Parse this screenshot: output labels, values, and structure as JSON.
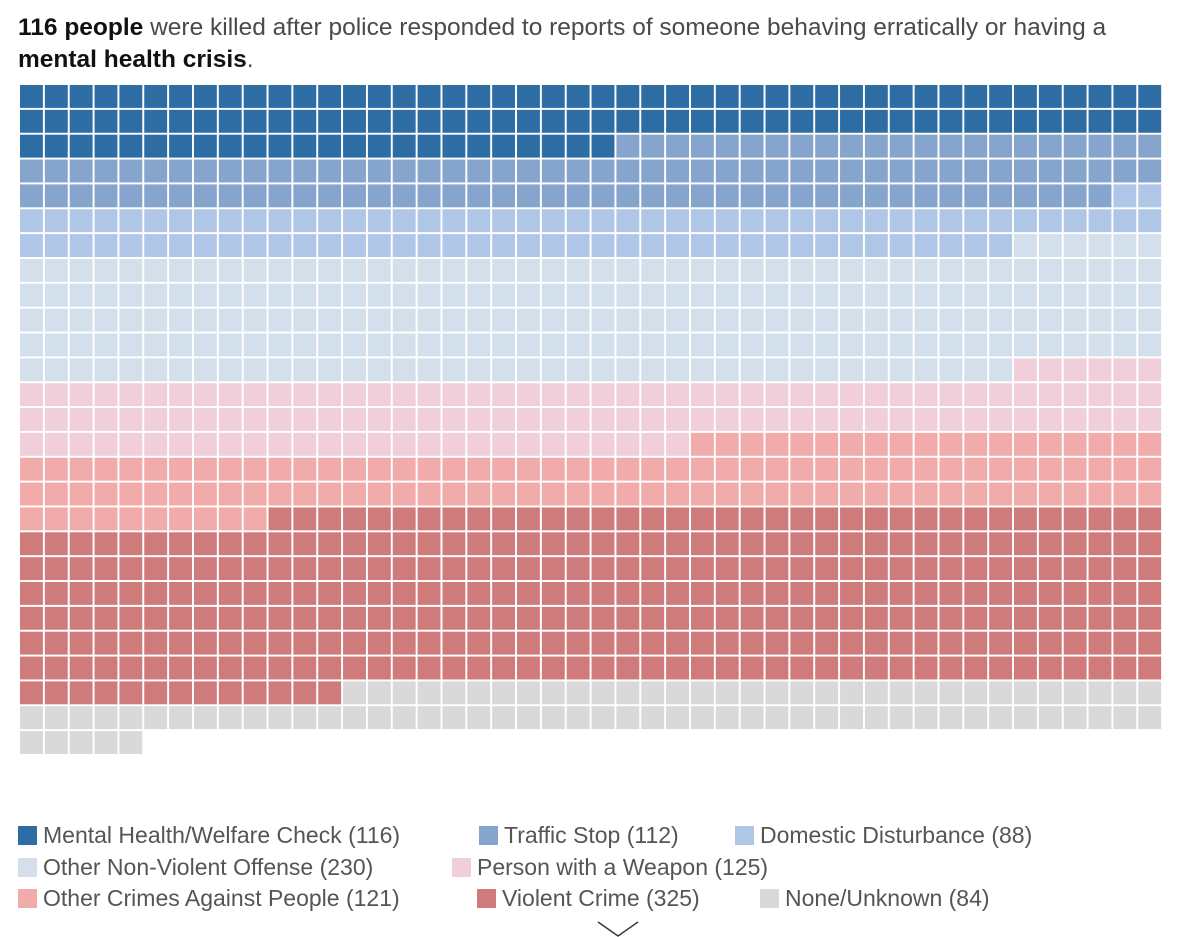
{
  "headline": {
    "count_bold": "116 people",
    "middle": " were killed after police responded to reports of someone behaving erratically or having a ",
    "topic_bold": "mental health crisis",
    "end": "."
  },
  "chart_data": {
    "type": "waffle",
    "units_per_row": 46,
    "filled_by": "rows, left to right, top to bottom",
    "series": [
      {
        "name": "Mental Health/Welfare Check",
        "value": 116,
        "color": "#2e6ca4"
      },
      {
        "name": "Traffic Stop",
        "value": 112,
        "color": "#85a5cd"
      },
      {
        "name": "Domestic Disturbance",
        "value": 88,
        "color": "#b0c6e6"
      },
      {
        "name": "Other Non-Violent Offense",
        "value": 230,
        "color": "#d4dfec"
      },
      {
        "name": "Person with a Weapon",
        "value": 125,
        "color": "#f0cfdb"
      },
      {
        "name": "Other Crimes Against People",
        "value": 121,
        "color": "#f1abaa"
      },
      {
        "name": "Violent Crime",
        "value": 325,
        "color": "#cf7b7b"
      },
      {
        "name": "None/Unknown",
        "value": 84,
        "color": "#d9d9d9"
      }
    ]
  },
  "legend": [
    {
      "label": "Mental Health/Welfare Check (116)",
      "color": "#2e6ca4"
    },
    {
      "label": "Traffic Stop (112)",
      "color": "#85a5cd"
    },
    {
      "label": "Domestic Disturbance (88)",
      "color": "#b0c6e6"
    },
    {
      "label": "Other Non-Violent Offense (230)",
      "color": "#d4dfec"
    },
    {
      "label": "Person with a Weapon (125)",
      "color": "#f0cfdb"
    },
    {
      "label": "Other Crimes Against People (121)",
      "color": "#f1abaa"
    },
    {
      "label": "Violent Crime (325)",
      "color": "#cf7b7b"
    },
    {
      "label": "None/Unknown (84)",
      "color": "#d9d9d9"
    }
  ],
  "icons": {
    "scroll": "chevron-down-icon"
  }
}
